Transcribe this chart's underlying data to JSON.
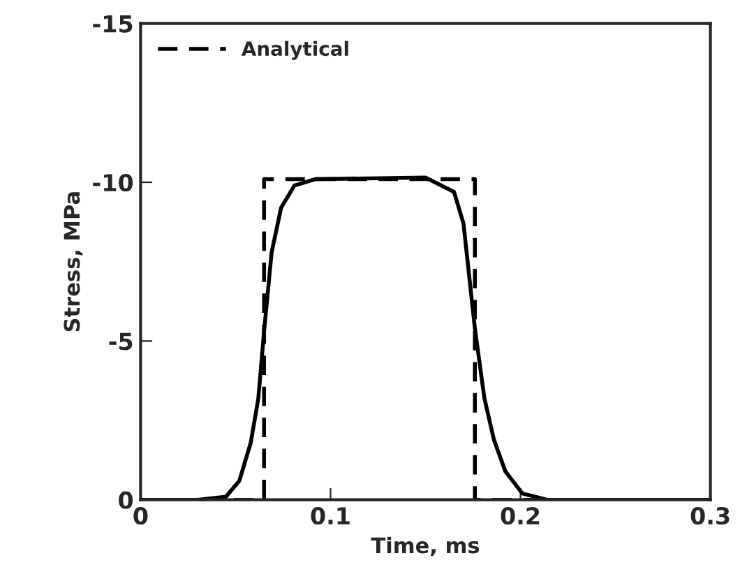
{
  "chart_data": {
    "type": "line",
    "xlabel": "Time, ms",
    "ylabel": "Stress, MPa",
    "xlim": [
      0,
      0.3
    ],
    "xticks": [
      0,
      0.1,
      0.2,
      0.3
    ],
    "ylim": [
      0,
      -15
    ],
    "yticks": [
      0,
      -5,
      -10,
      -15
    ],
    "grid": false,
    "legend": "top left",
    "series": [
      {
        "name": "Analytical",
        "color": "#000000",
        "line_style": "dashed",
        "x": [
          0,
          0.065,
          0.065,
          0.176,
          0.176,
          0.3
        ],
        "values": [
          0,
          0,
          -10.1,
          -10.1,
          0,
          0
        ]
      },
      {
        "color": "#000000",
        "line_style": "solid",
        "x": [
          0,
          0.03,
          0.045,
          0.052,
          0.058,
          0.062,
          0.065,
          0.069,
          0.074,
          0.081,
          0.092,
          0.15,
          0.165,
          0.17,
          0.176,
          0.181,
          0.186,
          0.192,
          0.201,
          0.214,
          0.3
        ],
        "values": [
          0,
          0,
          -0.1,
          -0.6,
          -1.8,
          -3.2,
          -5.3,
          -7.8,
          -9.2,
          -9.9,
          -10.1,
          -10.15,
          -9.7,
          -8.7,
          -5.4,
          -3.2,
          -1.9,
          -0.9,
          -0.2,
          0,
          0
        ]
      }
    ]
  }
}
